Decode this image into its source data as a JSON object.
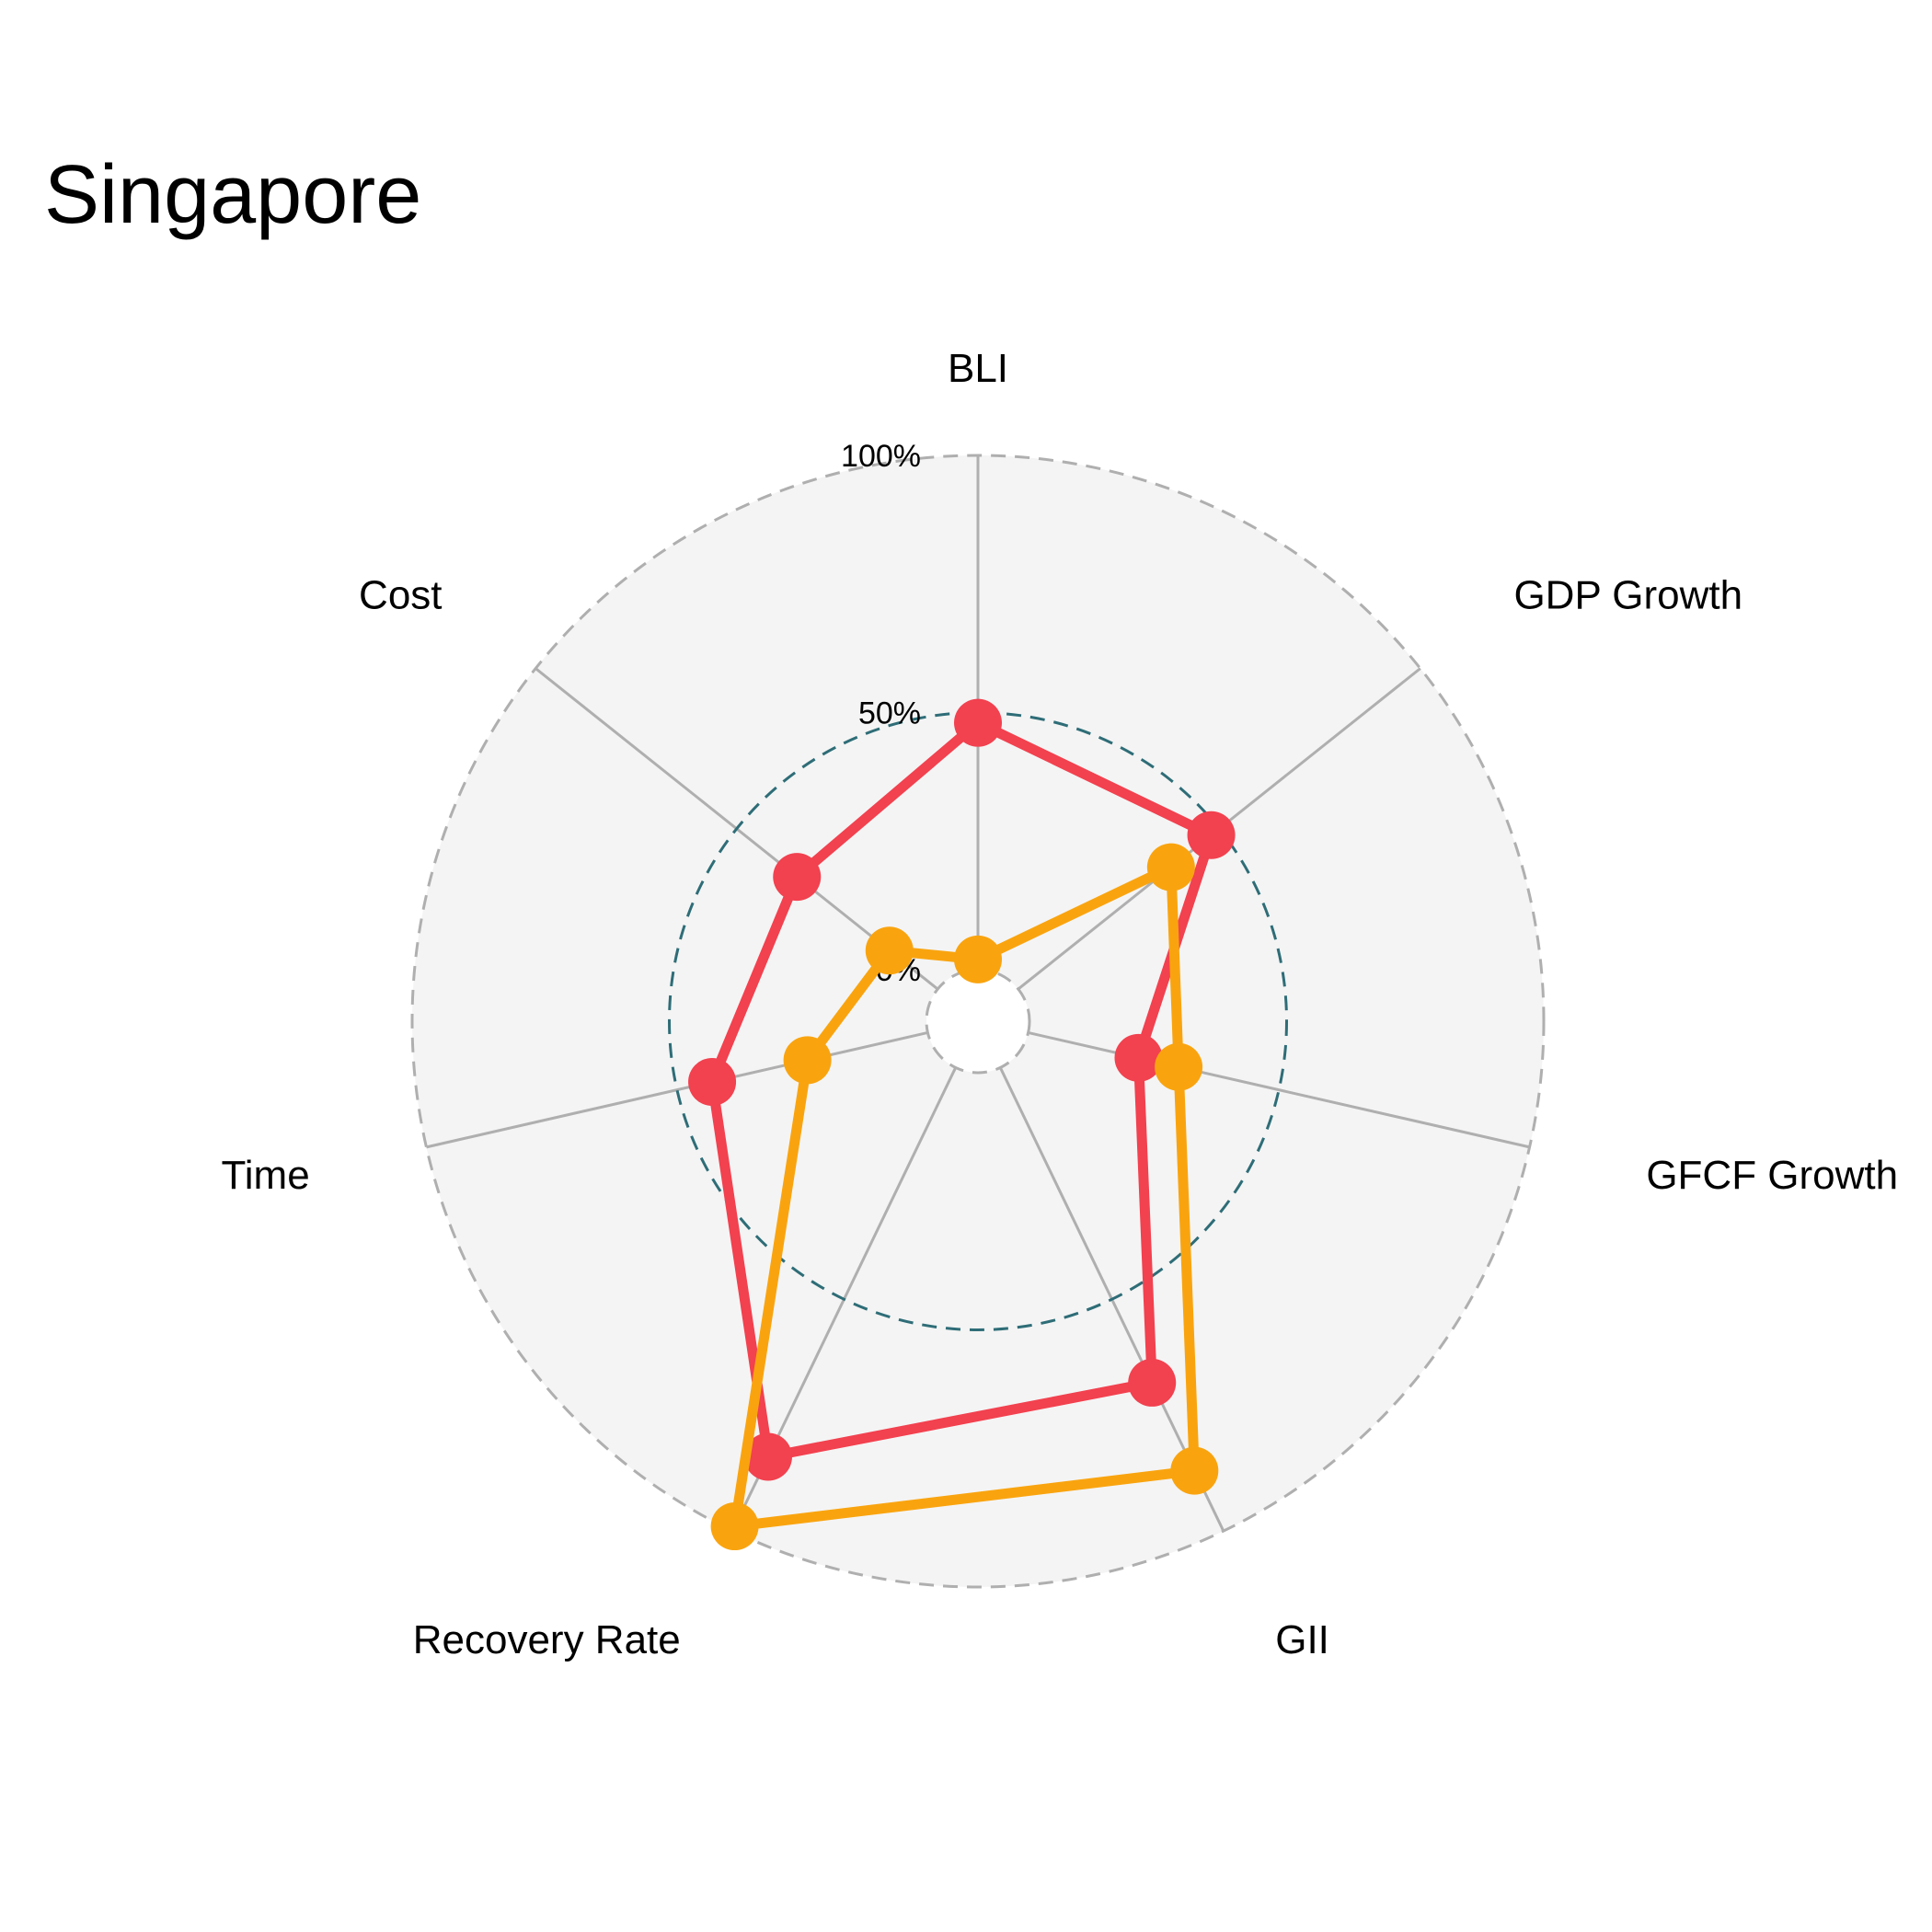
{
  "chart_data": {
    "type": "radar",
    "title": "Singapore",
    "axes": [
      "BLI",
      "GDP Growth",
      "GFCF Growth",
      "GII",
      "Recovery Rate",
      "Time",
      "Cost"
    ],
    "rlim": [
      0,
      100
    ],
    "ticks": [
      {
        "value": 0,
        "label": "0%"
      },
      {
        "value": 50,
        "label": "50%"
      },
      {
        "value": 100,
        "label": "100%"
      }
    ],
    "series": [
      {
        "values": [
          48,
          48,
          22,
          68,
          84,
          43,
          35
        ],
        "color": "#F2414F"
      },
      {
        "values": [
          2,
          38,
          30,
          87,
          99,
          24,
          12
        ],
        "color": "#F9A40F"
      }
    ],
    "grid": true,
    "legend": "none"
  },
  "colors": {
    "panel_fill": "#F4F4F4",
    "spoke": "#AFAFAF",
    "outer_ring": "#AFAFAF",
    "mid_ring": "#2E6D77"
  }
}
